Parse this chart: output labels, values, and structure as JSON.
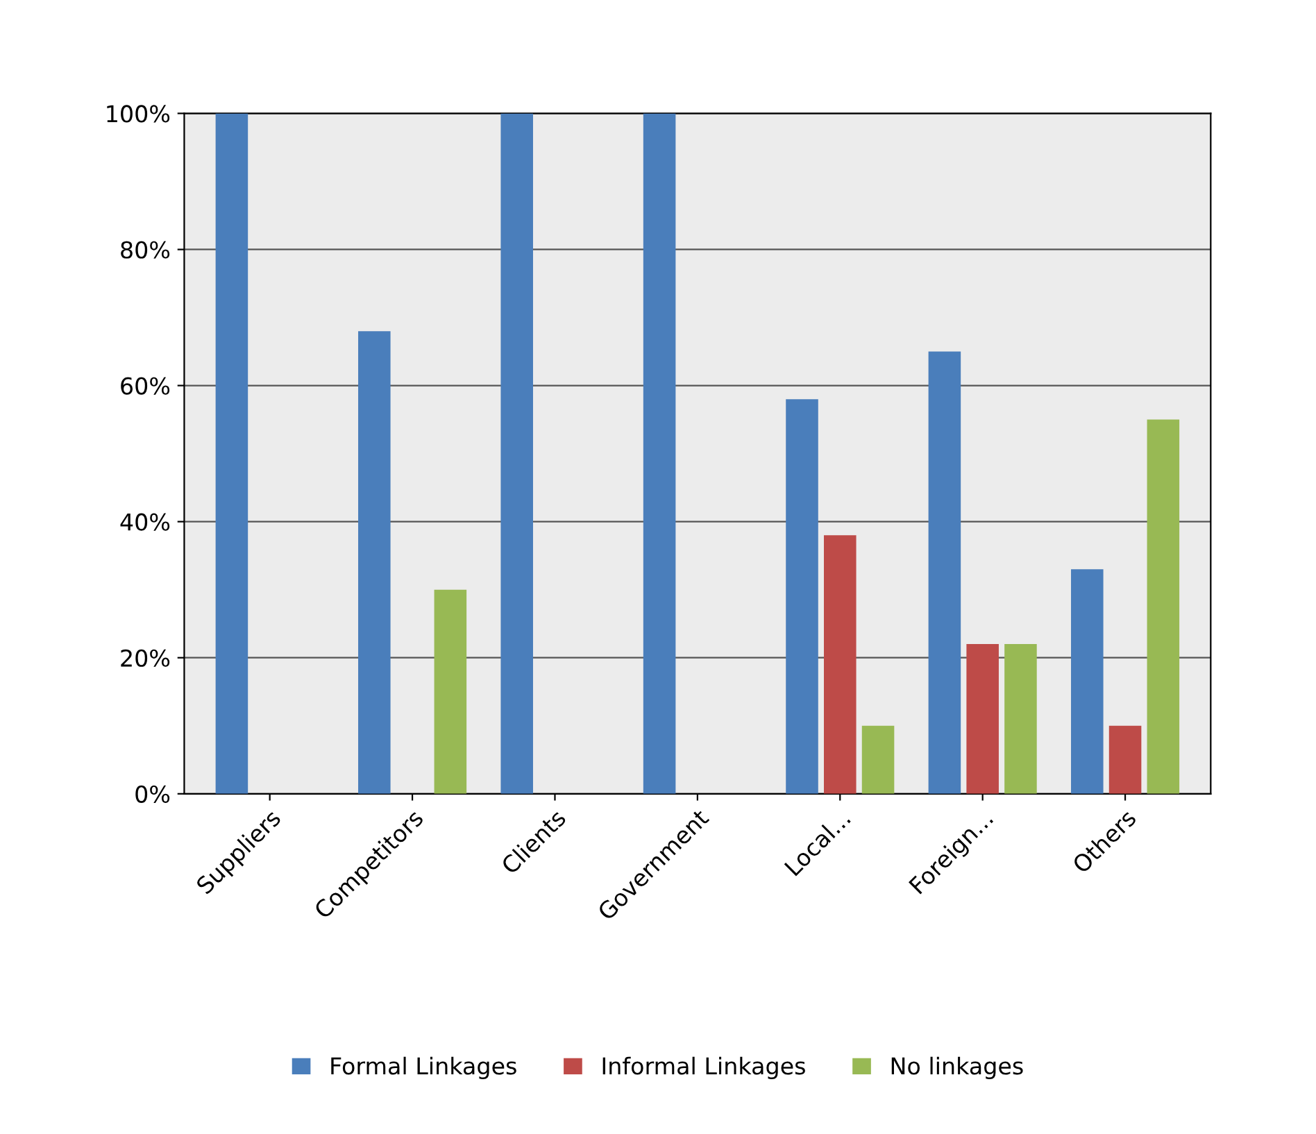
{
  "chart_data": {
    "type": "bar",
    "categories": [
      "Suppliers",
      "Competitors",
      "Clients",
      "Government",
      "Local...",
      "Foreign...",
      "Others"
    ],
    "series": [
      {
        "name": "Formal Linkages",
        "color": "#4a7ebb",
        "values": [
          100,
          68,
          100,
          100,
          58,
          65,
          33
        ]
      },
      {
        "name": "Informal Linkages",
        "color": "#be4b48",
        "values": [
          0,
          0,
          0,
          0,
          38,
          22,
          10
        ]
      },
      {
        "name": "No linkages",
        "color": "#98b954",
        "values": [
          0,
          30,
          0,
          0,
          10,
          22,
          55
        ]
      }
    ],
    "ylim": [
      0,
      100
    ],
    "yticks": [
      {
        "value": 0,
        "label": "0%"
      },
      {
        "value": 20,
        "label": "20%"
      },
      {
        "value": 40,
        "label": "40%"
      },
      {
        "value": 60,
        "label": "60%"
      },
      {
        "value": 80,
        "label": "80%"
      },
      {
        "value": 100,
        "label": "100%"
      }
    ],
    "grid": "y",
    "legend": "bottom"
  }
}
